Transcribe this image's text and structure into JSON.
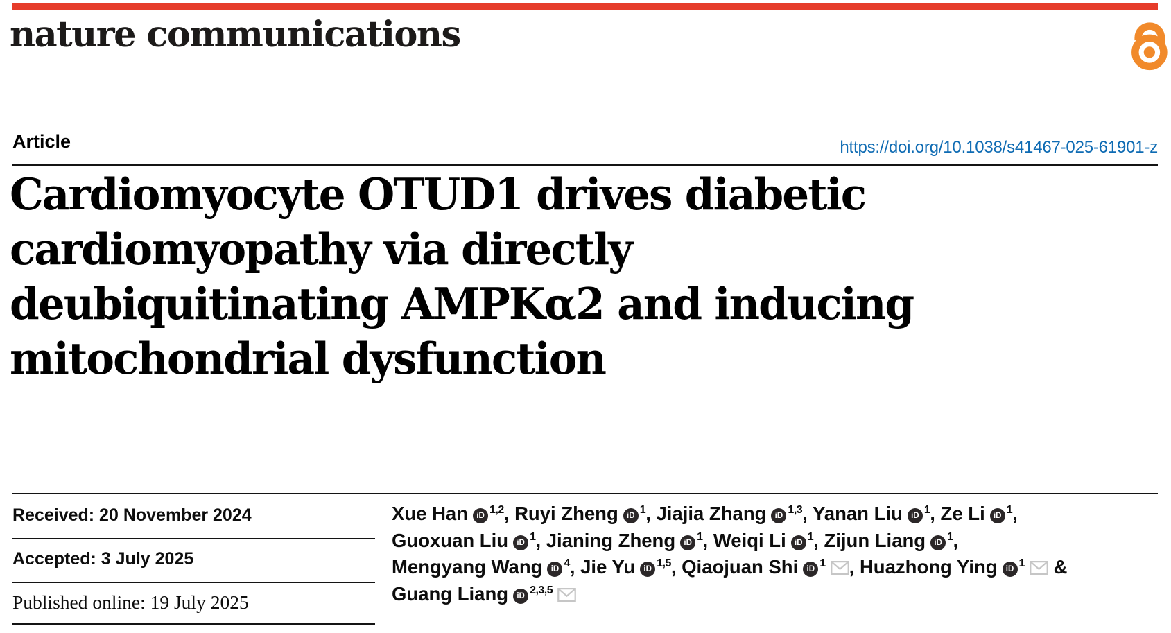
{
  "masthead": {
    "journal": "nature communications"
  },
  "colors": {
    "brand_red": "#e63c2a",
    "link_blue": "#0e6bb3",
    "oa_orange": "#f18a2b",
    "orcid_dark": "#2b2728",
    "envelope_gray": "#c6c6c6"
  },
  "article": {
    "label": "Article",
    "doi": "https://doi.org/10.1038/s41467-025-61901-z"
  },
  "title": {
    "lines": [
      "Cardiomyocyte OTUD1 drives diabetic",
      "cardiomyopathy via directly",
      "deubiquitinating AMPKα2 and inducing",
      "mitochondrial dysfunction"
    ]
  },
  "dates": {
    "received": "Received: 20 November 2024",
    "accepted": "Accepted: 3 July 2025",
    "published": "Published online: 19 July 2025"
  },
  "icons": {
    "open_access": "open-access-padlock",
    "orcid_label": "iD",
    "email": "envelope"
  },
  "authors": {
    "lines": [
      [
        {
          "name": "Xue Han",
          "orcid": true,
          "sup": "1,2",
          "env": false,
          "trail": ", "
        },
        {
          "name": "Ruyi Zheng",
          "orcid": true,
          "sup": "1",
          "env": false,
          "trail": ", "
        },
        {
          "name": "Jiajia Zhang",
          "orcid": true,
          "sup": "1,3",
          "env": false,
          "trail": ", "
        },
        {
          "name": "Yanan Liu",
          "orcid": true,
          "sup": "1",
          "env": false,
          "trail": ", "
        },
        {
          "name": "Ze Li",
          "orcid": true,
          "sup": "1",
          "env": false,
          "trail": ","
        }
      ],
      [
        {
          "name": "Guoxuan Liu",
          "orcid": true,
          "sup": "1",
          "env": false,
          "trail": ", "
        },
        {
          "name": "Jianing Zheng",
          "orcid": true,
          "sup": "1",
          "env": false,
          "trail": ", "
        },
        {
          "name": "Weiqi Li",
          "orcid": true,
          "sup": "1",
          "env": false,
          "trail": ", "
        },
        {
          "name": "Zijun Liang",
          "orcid": true,
          "sup": "1",
          "env": false,
          "trail": ","
        }
      ],
      [
        {
          "name": "Mengyang Wang",
          "orcid": true,
          "sup": "4",
          "env": false,
          "trail": ", "
        },
        {
          "name": "Jie Yu",
          "orcid": true,
          "sup": "1,5",
          "env": false,
          "trail": ", "
        },
        {
          "name": "Qiaojuan Shi",
          "orcid": true,
          "sup": "1",
          "env": true,
          "trail": ", "
        },
        {
          "name": "Huazhong Ying",
          "orcid": true,
          "sup": "1",
          "env": true,
          "trail": " &"
        }
      ],
      [
        {
          "name": "Guang Liang",
          "orcid": true,
          "sup": "2,3,5",
          "env": true,
          "trail": ""
        }
      ]
    ]
  }
}
